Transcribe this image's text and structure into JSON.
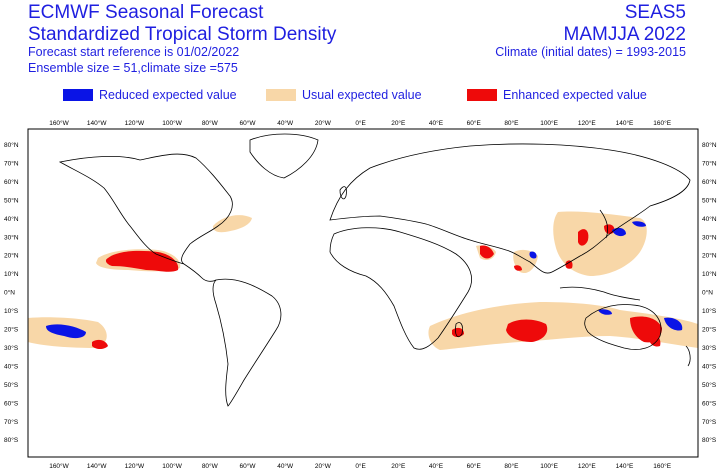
{
  "header": {
    "title_line1": "ECMWF Seasonal Forecast",
    "title_line2": "Standardized Tropical Storm Density",
    "start_reference": "Forecast start reference is 01/02/2022",
    "ensemble": "Ensemble size = 51,climate size =575",
    "system": "SEAS5",
    "period": "MAMJJA 2022",
    "climate": "Climate (initial dates) = 1993-2015"
  },
  "legend": [
    {
      "label": "Reduced expected value",
      "color": "#0a14e6"
    },
    {
      "label": "Usual expected value",
      "color": "#f8d7a8"
    },
    {
      "label": "Enhanced expected value",
      "color": "#ee0a0a"
    }
  ],
  "map": {
    "lon_labels": [
      "160°W",
      "140°W",
      "120°W",
      "100°W",
      "80°W",
      "60°W",
      "40°W",
      "20°W",
      "0°E",
      "20°E",
      "40°E",
      "60°E",
      "80°E",
      "100°E",
      "120°E",
      "140°E",
      "160°E"
    ],
    "lat_labels": [
      "80°N",
      "70°N",
      "60°N",
      "50°N",
      "40°N",
      "30°N",
      "20°N",
      "10°N",
      "0°N",
      "10°S",
      "20°S",
      "30°S",
      "40°S",
      "50°S",
      "60°S",
      "70°S",
      "80°S"
    ],
    "frame_color": "#000000"
  }
}
